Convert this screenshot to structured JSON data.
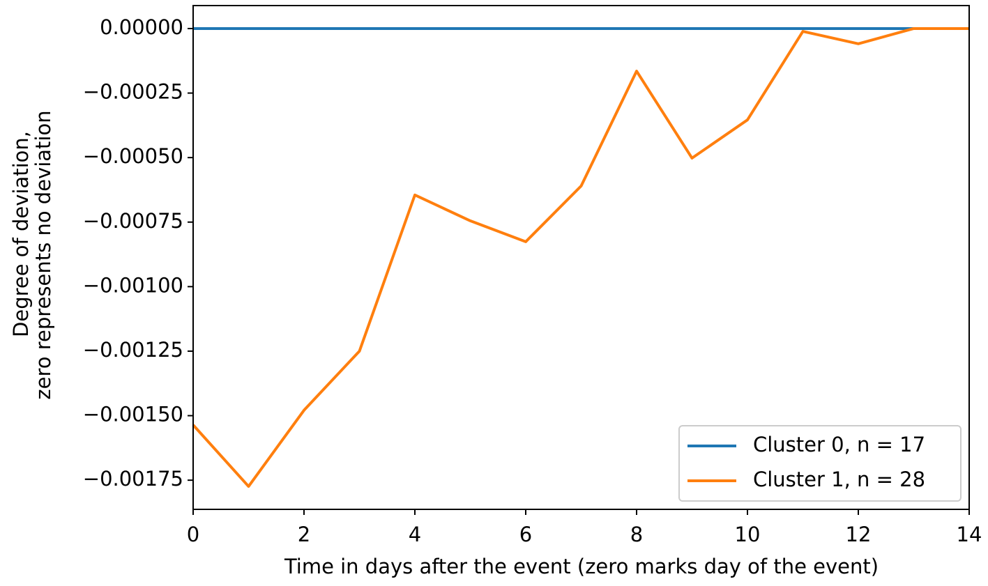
{
  "chart_data": {
    "type": "line",
    "xlabel": "Time in days after the event (zero marks day of the event)",
    "ylabel": [
      "Degree of deviation,",
      "zero represents no deviation"
    ],
    "x": [
      0,
      1,
      2,
      3,
      4,
      5,
      6,
      7,
      8,
      9,
      10,
      11,
      12,
      13,
      14
    ],
    "series": [
      {
        "name": "Cluster 0, n = 17",
        "color": "#1f77b4",
        "values": [
          0,
          0,
          0,
          0,
          0,
          0,
          0,
          0,
          0,
          0,
          0,
          0,
          0,
          0,
          0
        ]
      },
      {
        "name": "Cluster 1, n = 28",
        "color": "#ff7f0e",
        "values": [
          -0.001536,
          -0.001774,
          -0.001479,
          -0.00125,
          -0.000645,
          -0.000745,
          -0.000826,
          -0.00061,
          -0.000165,
          -0.000502,
          -0.000354,
          -1.1e-05,
          -5.9e-05,
          0,
          0
        ]
      }
    ],
    "xlim": [
      0,
      14
    ],
    "xticks": [
      0,
      2,
      4,
      6,
      8,
      10,
      12,
      14
    ],
    "ylim": [
      -0.001863,
      8.9e-05
    ],
    "yticks": [
      {
        "value": 0,
        "label": "0.00000"
      },
      {
        "value": -0.00025,
        "label": "−0.00025"
      },
      {
        "value": -0.0005,
        "label": "−0.00050"
      },
      {
        "value": -0.00075,
        "label": "−0.00075"
      },
      {
        "value": -0.001,
        "label": "−0.00100"
      },
      {
        "value": -0.00125,
        "label": "−0.00125"
      },
      {
        "value": -0.0015,
        "label": "−0.00150"
      },
      {
        "value": -0.00175,
        "label": "−0.00175"
      }
    ],
    "legend": "lower right"
  }
}
